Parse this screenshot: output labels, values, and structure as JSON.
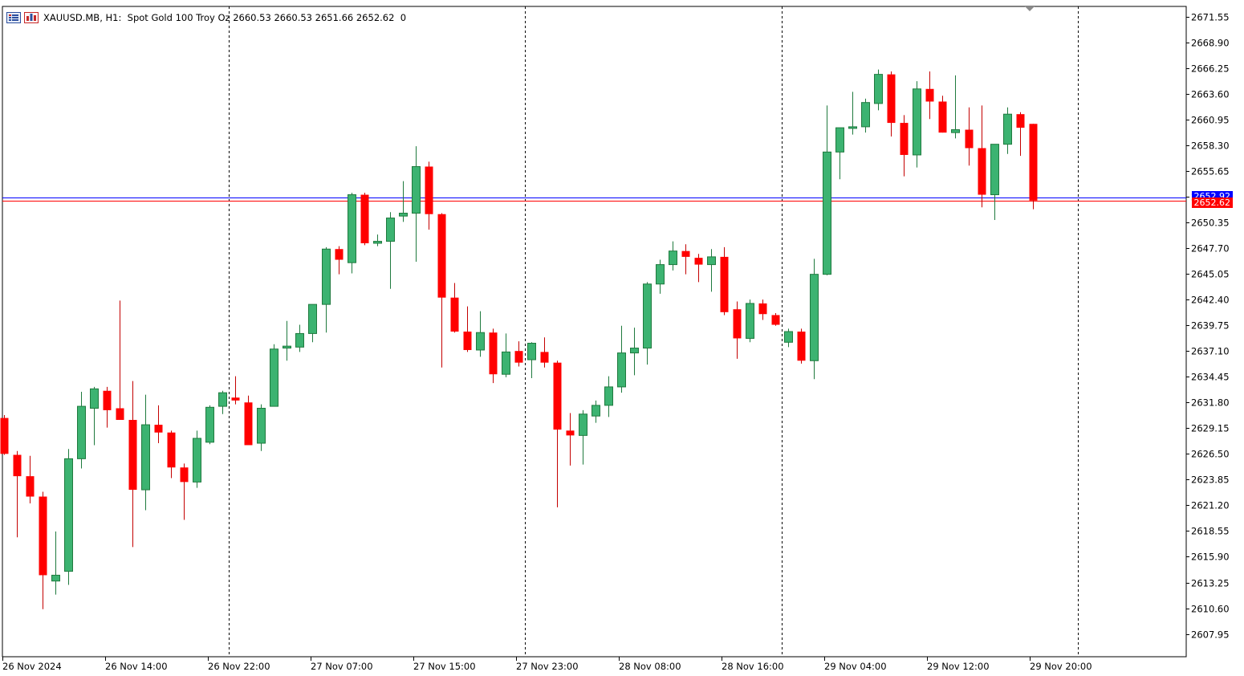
{
  "symbol": "XAUUSD.MB",
  "timeframe": "H1:",
  "description": "Spot Gold 100 Troy Oz",
  "ohlc_text": "2660.53 2660.53 2651.66 2652.62",
  "volume_text": "0",
  "colors": {
    "bull": "#3cb371",
    "bear": "#ff0000",
    "bid_line": "#ff0000",
    "ask_line": "#0000ff",
    "grid": "#000000",
    "axis": "#000000"
  },
  "current_price_label": "2652.62",
  "ask_price_label": "2652.92",
  "chart_data": {
    "type": "candlestick",
    "title": "",
    "xlabel": "",
    "ylabel": "",
    "ylim": [
      2605.6,
      2672.6
    ],
    "y_ticks": [
      "2671.55",
      "2668.90",
      "2666.25",
      "2663.60",
      "2660.95",
      "2658.30",
      "2655.65",
      "2653.00",
      "2650.35",
      "2647.70",
      "2645.05",
      "2642.40",
      "2639.75",
      "2637.10",
      "2634.45",
      "2631.80",
      "2629.15",
      "2626.50",
      "2623.85",
      "2621.20",
      "2618.55",
      "2615.90",
      "2613.25",
      "2610.60",
      "2607.95"
    ],
    "x_ticks": [
      "26 Nov 2024",
      "26 Nov 14:00",
      "26 Nov 22:00",
      "27 Nov 07:00",
      "27 Nov 15:00",
      "27 Nov 23:00",
      "28 Nov 08:00",
      "28 Nov 16:00",
      "29 Nov 04:00",
      "29 Nov 12:00",
      "29 Nov 20:00"
    ],
    "grid": "vertical day separators",
    "bid_price": 2652.62,
    "ask_price": 2652.92,
    "candles": [
      {
        "o": 2630.2,
        "h": 2630.5,
        "l": 2626.4,
        "c": 2626.5
      },
      {
        "o": 2626.4,
        "h": 2626.8,
        "l": 2617.9,
        "c": 2624.2
      },
      {
        "o": 2624.2,
        "h": 2626.3,
        "l": 2621.4,
        "c": 2622.1
      },
      {
        "o": 2622.1,
        "h": 2622.6,
        "l": 2610.5,
        "c": 2614.0
      },
      {
        "o": 2613.4,
        "h": 2618.5,
        "l": 2612.0,
        "c": 2614.0
      },
      {
        "o": 2614.4,
        "h": 2627.0,
        "l": 2613.0,
        "c": 2626.0
      },
      {
        "o": 2626.0,
        "h": 2632.9,
        "l": 2625.0,
        "c": 2631.4
      },
      {
        "o": 2631.2,
        "h": 2633.4,
        "l": 2627.4,
        "c": 2633.2
      },
      {
        "o": 2633.0,
        "h": 2633.4,
        "l": 2629.2,
        "c": 2631.0
      },
      {
        "o": 2631.2,
        "h": 2642.3,
        "l": 2630.0,
        "c": 2630.0
      },
      {
        "o": 2630.0,
        "h": 2634.0,
        "l": 2616.9,
        "c": 2622.8
      },
      {
        "o": 2622.8,
        "h": 2632.6,
        "l": 2620.7,
        "c": 2629.5
      },
      {
        "o": 2629.5,
        "h": 2631.5,
        "l": 2627.6,
        "c": 2628.7
      },
      {
        "o": 2628.7,
        "h": 2628.9,
        "l": 2624.0,
        "c": 2625.1
      },
      {
        "o": 2625.1,
        "h": 2625.5,
        "l": 2619.7,
        "c": 2623.6
      },
      {
        "o": 2623.6,
        "h": 2628.9,
        "l": 2623.0,
        "c": 2628.1
      },
      {
        "o": 2627.7,
        "h": 2631.5,
        "l": 2627.5,
        "c": 2631.3
      },
      {
        "o": 2631.4,
        "h": 2633.0,
        "l": 2630.6,
        "c": 2632.8
      },
      {
        "o": 2632.3,
        "h": 2634.5,
        "l": 2631.6,
        "c": 2632.0
      },
      {
        "o": 2631.8,
        "h": 2632.5,
        "l": 2627.8,
        "c": 2627.4
      },
      {
        "o": 2627.6,
        "h": 2631.6,
        "l": 2626.8,
        "c": 2631.2
      },
      {
        "o": 2631.4,
        "h": 2637.8,
        "l": 2631.4,
        "c": 2637.3
      },
      {
        "o": 2637.4,
        "h": 2640.2,
        "l": 2636.1,
        "c": 2637.6
      },
      {
        "o": 2637.5,
        "h": 2639.8,
        "l": 2637.0,
        "c": 2638.9
      },
      {
        "o": 2638.9,
        "h": 2641.4,
        "l": 2638.0,
        "c": 2641.9
      },
      {
        "o": 2641.9,
        "h": 2647.8,
        "l": 2639.0,
        "c": 2647.6
      },
      {
        "o": 2647.6,
        "h": 2647.9,
        "l": 2645.0,
        "c": 2646.5
      },
      {
        "o": 2646.2,
        "h": 2653.4,
        "l": 2645.1,
        "c": 2653.2
      },
      {
        "o": 2653.2,
        "h": 2653.4,
        "l": 2648.0,
        "c": 2648.2
      },
      {
        "o": 2648.2,
        "h": 2649.1,
        "l": 2647.9,
        "c": 2648.4
      },
      {
        "o": 2648.4,
        "h": 2651.4,
        "l": 2643.5,
        "c": 2650.8
      },
      {
        "o": 2651.0,
        "h": 2654.6,
        "l": 2650.4,
        "c": 2651.3
      },
      {
        "o": 2651.3,
        "h": 2658.2,
        "l": 2646.3,
        "c": 2656.1
      },
      {
        "o": 2656.1,
        "h": 2656.6,
        "l": 2649.6,
        "c": 2651.2
      },
      {
        "o": 2651.2,
        "h": 2651.3,
        "l": 2635.4,
        "c": 2642.6
      },
      {
        "o": 2642.6,
        "h": 2644.1,
        "l": 2639.0,
        "c": 2639.1
      },
      {
        "o": 2639.1,
        "h": 2641.7,
        "l": 2637.0,
        "c": 2637.2
      },
      {
        "o": 2637.2,
        "h": 2641.2,
        "l": 2636.5,
        "c": 2639.0
      },
      {
        "o": 2639.0,
        "h": 2639.4,
        "l": 2633.8,
        "c": 2634.7
      },
      {
        "o": 2634.7,
        "h": 2638.9,
        "l": 2634.4,
        "c": 2637.0
      },
      {
        "o": 2637.1,
        "h": 2638.1,
        "l": 2635.5,
        "c": 2635.9
      },
      {
        "o": 2636.2,
        "h": 2638.0,
        "l": 2634.3,
        "c": 2637.9
      },
      {
        "o": 2637.0,
        "h": 2638.5,
        "l": 2635.4,
        "c": 2635.9
      },
      {
        "o": 2635.9,
        "h": 2636.1,
        "l": 2621.0,
        "c": 2629.0
      },
      {
        "o": 2628.9,
        "h": 2630.7,
        "l": 2625.3,
        "c": 2628.4
      },
      {
        "o": 2628.4,
        "h": 2631.0,
        "l": 2625.4,
        "c": 2630.6
      },
      {
        "o": 2630.4,
        "h": 2632.0,
        "l": 2629.7,
        "c": 2631.5
      },
      {
        "o": 2631.5,
        "h": 2634.5,
        "l": 2630.3,
        "c": 2633.4
      },
      {
        "o": 2633.4,
        "h": 2639.7,
        "l": 2632.8,
        "c": 2636.9
      },
      {
        "o": 2636.9,
        "h": 2639.5,
        "l": 2634.6,
        "c": 2637.4
      },
      {
        "o": 2637.4,
        "h": 2644.2,
        "l": 2635.7,
        "c": 2644.0
      },
      {
        "o": 2644.0,
        "h": 2646.5,
        "l": 2643.0,
        "c": 2646.0
      },
      {
        "o": 2646.0,
        "h": 2648.4,
        "l": 2645.4,
        "c": 2647.4
      },
      {
        "o": 2647.4,
        "h": 2648.1,
        "l": 2645.0,
        "c": 2646.8
      },
      {
        "o": 2646.7,
        "h": 2647.1,
        "l": 2644.2,
        "c": 2646.0
      },
      {
        "o": 2646.0,
        "h": 2647.6,
        "l": 2643.2,
        "c": 2646.8
      },
      {
        "o": 2646.8,
        "h": 2647.8,
        "l": 2640.8,
        "c": 2641.1
      },
      {
        "o": 2641.4,
        "h": 2642.2,
        "l": 2636.3,
        "c": 2638.4
      },
      {
        "o": 2638.4,
        "h": 2642.4,
        "l": 2638.0,
        "c": 2642.0
      },
      {
        "o": 2642.0,
        "h": 2642.4,
        "l": 2640.3,
        "c": 2640.9
      },
      {
        "o": 2640.8,
        "h": 2641.0,
        "l": 2639.7,
        "c": 2639.8
      },
      {
        "o": 2638.0,
        "h": 2639.4,
        "l": 2637.5,
        "c": 2639.1
      },
      {
        "o": 2639.1,
        "h": 2639.4,
        "l": 2635.8,
        "c": 2636.1
      },
      {
        "o": 2636.1,
        "h": 2646.6,
        "l": 2634.2,
        "c": 2645.0
      },
      {
        "o": 2645.0,
        "h": 2662.4,
        "l": 2644.9,
        "c": 2657.6
      },
      {
        "o": 2657.6,
        "h": 2660.1,
        "l": 2654.8,
        "c": 2660.1
      },
      {
        "o": 2660.1,
        "h": 2663.8,
        "l": 2659.4,
        "c": 2660.2
      },
      {
        "o": 2660.2,
        "h": 2663.1,
        "l": 2659.6,
        "c": 2662.7
      },
      {
        "o": 2662.6,
        "h": 2666.1,
        "l": 2661.9,
        "c": 2665.6
      },
      {
        "o": 2665.6,
        "h": 2665.9,
        "l": 2659.2,
        "c": 2660.6
      },
      {
        "o": 2660.6,
        "h": 2661.4,
        "l": 2655.1,
        "c": 2657.3
      },
      {
        "o": 2657.3,
        "h": 2664.9,
        "l": 2656.0,
        "c": 2664.1
      },
      {
        "o": 2664.1,
        "h": 2665.9,
        "l": 2661.0,
        "c": 2662.8
      },
      {
        "o": 2662.8,
        "h": 2663.4,
        "l": 2659.6,
        "c": 2659.6
      },
      {
        "o": 2659.6,
        "h": 2665.5,
        "l": 2659.0,
        "c": 2659.9
      },
      {
        "o": 2659.9,
        "h": 2662.2,
        "l": 2656.2,
        "c": 2658.0
      },
      {
        "o": 2658.0,
        "h": 2662.4,
        "l": 2651.9,
        "c": 2653.2
      },
      {
        "o": 2653.2,
        "h": 2658.4,
        "l": 2650.6,
        "c": 2658.4
      },
      {
        "o": 2658.4,
        "h": 2662.2,
        "l": 2657.4,
        "c": 2661.5
      },
      {
        "o": 2661.5,
        "h": 2661.7,
        "l": 2657.2,
        "c": 2660.1
      },
      {
        "o": 2660.5,
        "h": 2660.5,
        "l": 2651.7,
        "c": 2652.6
      }
    ]
  }
}
